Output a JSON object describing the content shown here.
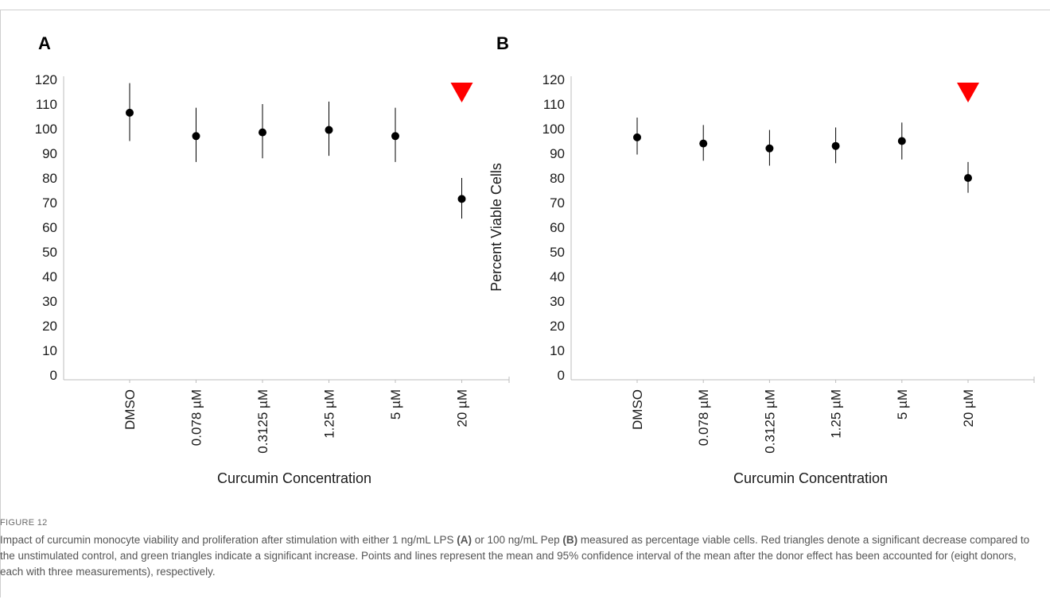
{
  "chart_data": [
    {
      "type": "scatter",
      "panel_label": "A",
      "xlabel": "Curcumin Concentration",
      "ylabel": "",
      "categories": [
        "DMSO",
        "0.078 µM",
        "0.3125 µM",
        "1.25 µM",
        "5 µM",
        "20 µM"
      ],
      "yticks": [
        "0",
        "10",
        "20",
        "30",
        "40",
        "50",
        "60",
        "70",
        "80",
        "90",
        "100",
        "110",
        "120"
      ],
      "ylim": [
        0,
        120
      ],
      "series": [
        {
          "mean": [
            106.5,
            97,
            98.5,
            99.5,
            97,
            71.5
          ],
          "ci_low": [
            95,
            86.5,
            88,
            89,
            86.5,
            63.5
          ],
          "ci_high": [
            118.5,
            108.5,
            110,
            111,
            108.5,
            80
          ]
        }
      ],
      "significance": [
        {
          "category": "20 µM",
          "direction": "decrease",
          "color": "#ff0000"
        }
      ],
      "grid": false
    },
    {
      "type": "scatter",
      "panel_label": "B",
      "xlabel": "Curcumin Concentration",
      "ylabel": "Percent Viable Cells",
      "categories": [
        "DMSO",
        "0.078 µM",
        "0.3125 µM",
        "1.25 µM",
        "5 µM",
        "20 µM"
      ],
      "yticks": [
        "0",
        "10",
        "20",
        "30",
        "40",
        "50",
        "60",
        "70",
        "80",
        "90",
        "100",
        "110",
        "120"
      ],
      "ylim": [
        0,
        120
      ],
      "series": [
        {
          "mean": [
            96.5,
            94,
            92,
            93,
            95,
            80
          ],
          "ci_low": [
            89.5,
            87,
            85,
            86,
            87.5,
            74
          ],
          "ci_high": [
            104.5,
            101.5,
            99.5,
            100.5,
            102.5,
            86.5
          ]
        }
      ],
      "significance": [
        {
          "category": "20 µM",
          "direction": "decrease",
          "color": "#ff0000"
        }
      ],
      "grid": false
    }
  ],
  "caption": {
    "label": "FIGURE 12",
    "seg1": "Impact of curcumin monocyte viability and proliferation after stimulation with either 1 ng/mL LPS ",
    "ref_a": "(A)",
    "seg2": " or 100 ng/mL Pep ",
    "ref_b": "(B)",
    "seg3": " measured as percentage viable cells. Red triangles denote a significant decrease compared to the unstimulated control, and green triangles indicate a significant increase. Points and lines represent the mean and 95% confidence interval of the mean after the donor effect has been accounted for (eight donors, each with three measurements), respectively."
  },
  "colors": {
    "marker": "#000000",
    "significance_decrease": "#ff0000",
    "significance_increase": "#00a000",
    "axis": "#bdbdbd"
  }
}
